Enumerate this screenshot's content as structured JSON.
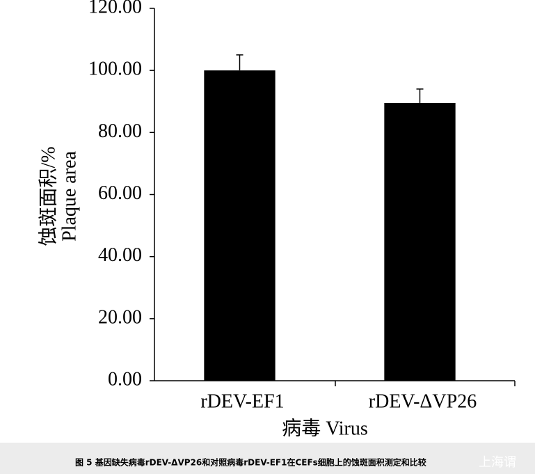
{
  "chart_data": {
    "type": "bar",
    "categories": [
      "rDEV-EF1",
      "rDEV-ΔVP26"
    ],
    "values": [
      100,
      89.5
    ],
    "errors": [
      5,
      4.5
    ],
    "color": "#000000",
    "ylim": [
      0,
      120
    ],
    "yticks": [
      {
        "value": 0,
        "label": "0.00"
      },
      {
        "value": 20,
        "label": "20.00"
      },
      {
        "value": 40,
        "label": "40.00"
      },
      {
        "value": 60,
        "label": "60.00"
      },
      {
        "value": 80,
        "label": "80.00"
      },
      {
        "value": 100,
        "label": "100.00"
      },
      {
        "value": 120,
        "label": "120.00"
      }
    ],
    "ylabel": [
      "蚀斑面积/%",
      "Plaque area"
    ],
    "xlabel": "病毒 Virus"
  },
  "caption": "图 5   基因缺失病毒rDEV-ΔVP26和对照病毒rDEV-EF1在CEFs细胞上的蚀斑面积测定和比较",
  "watermark": "上海谓"
}
